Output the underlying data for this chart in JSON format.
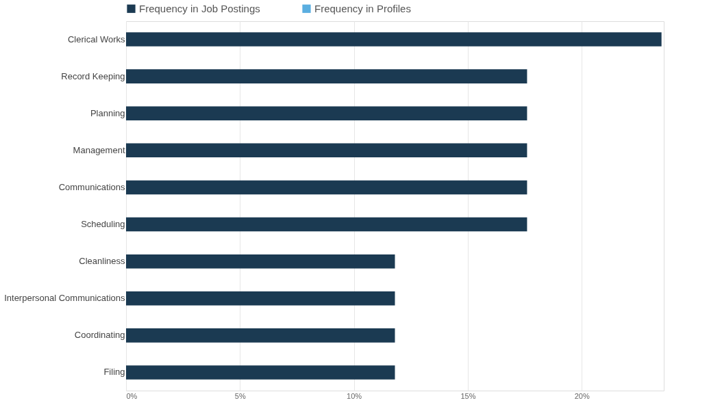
{
  "chart_data": {
    "type": "bar",
    "orientation": "horizontal",
    "categories": [
      "Clerical Works",
      "Record Keeping",
      "Planning",
      "Management",
      "Communications",
      "Scheduling",
      "Cleanliness",
      "Interpersonal Communications",
      "Coordinating",
      "Filing"
    ],
    "series": [
      {
        "name": "Frequency in Job Postings",
        "color": "#1b3a52",
        "values": [
          23.5,
          17.6,
          17.6,
          17.6,
          17.6,
          17.6,
          11.8,
          11.8,
          11.8,
          11.8
        ]
      },
      {
        "name": "Frequency in Profiles",
        "color": "#5aaee0",
        "values": [
          null,
          null,
          null,
          null,
          null,
          null,
          null,
          null,
          null,
          null
        ]
      }
    ],
    "xlim": [
      0,
      23.6
    ],
    "xticks": [
      {
        "value": 0,
        "label": "0%"
      },
      {
        "value": 5,
        "label": "5%"
      },
      {
        "value": 10,
        "label": "10%"
      },
      {
        "value": 15,
        "label": "15%"
      },
      {
        "value": 20,
        "label": "20%"
      }
    ],
    "grid": "x",
    "legend": "top"
  }
}
